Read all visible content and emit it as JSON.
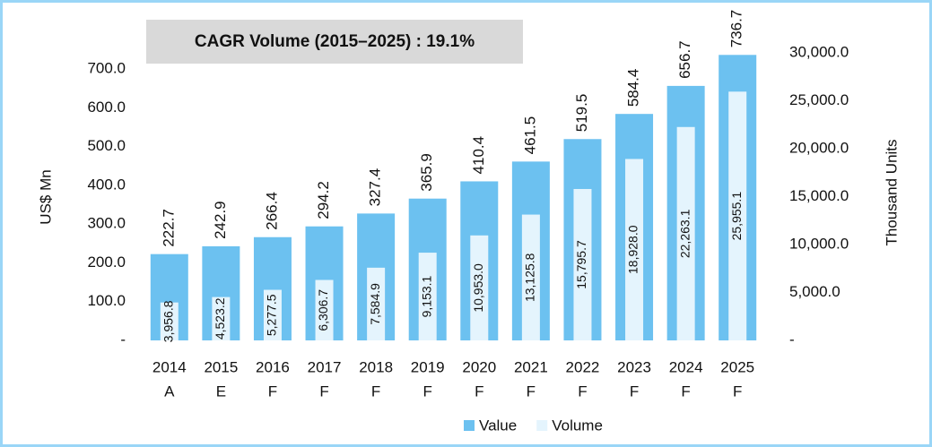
{
  "chart_data": {
    "type": "bar",
    "annotation": "CAGR Volume (2015–2025) : 19.1%",
    "y_label": "US$ Mn",
    "y2_label": "Thousand Units",
    "categories": [
      [
        "2014",
        "A"
      ],
      [
        "2015",
        "E"
      ],
      [
        "2016",
        "F"
      ],
      [
        "2017",
        "F"
      ],
      [
        "2018",
        "F"
      ],
      [
        "2019",
        "F"
      ],
      [
        "2020",
        "F"
      ],
      [
        "2021",
        "F"
      ],
      [
        "2022",
        "F"
      ],
      [
        "2023",
        "F"
      ],
      [
        "2024",
        "F"
      ],
      [
        "2025",
        "F"
      ]
    ],
    "series": [
      {
        "name": "Value",
        "color": "#6cc1f0",
        "axis": "y",
        "values": [
          222.7,
          242.9,
          266.4,
          294.2,
          327.4,
          365.9,
          410.4,
          461.5,
          519.5,
          584.4,
          656.7,
          736.7
        ]
      },
      {
        "name": "Volume",
        "color": "#e4f4fd",
        "axis": "y2",
        "values": [
          3956.8,
          4523.2,
          5277.5,
          6306.7,
          7584.9,
          9153.1,
          10953.0,
          13125.8,
          15795.7,
          18928.0,
          22263.1,
          25955.1
        ],
        "value_labels": [
          "3,956.8",
          "4,523.2",
          "5,277.5",
          "6,306.7",
          "7,584.9",
          "9,153.1",
          "10,953.0",
          "13,125.8",
          "15,795.7",
          "18,928.0",
          "22,263.1",
          "25,955.1"
        ]
      }
    ],
    "ylim": [
      0,
      742
    ],
    "yticks": [
      {
        "value": 0,
        "label": "-"
      },
      {
        "value": 100,
        "label": "100.0"
      },
      {
        "value": 200,
        "label": "200.0"
      },
      {
        "value": 300,
        "label": "300.0"
      },
      {
        "value": 400,
        "label": "400.0"
      },
      {
        "value": 500,
        "label": "500.0"
      },
      {
        "value": 600,
        "label": "600.0"
      },
      {
        "value": 700,
        "label": "700.0"
      }
    ],
    "y2lim": [
      0,
      30000
    ],
    "y2ticks": [
      {
        "value": 0,
        "label": "-"
      },
      {
        "value": 5000,
        "label": "5,000.0"
      },
      {
        "value": 10000,
        "label": "10,000.0"
      },
      {
        "value": 15000,
        "label": "15,000.0"
      },
      {
        "value": 20000,
        "label": "20,000.0"
      },
      {
        "value": 25000,
        "label": "25,000.0"
      },
      {
        "value": 30000,
        "label": "30,000.0"
      }
    ],
    "grid": false,
    "legend": "bottom"
  }
}
